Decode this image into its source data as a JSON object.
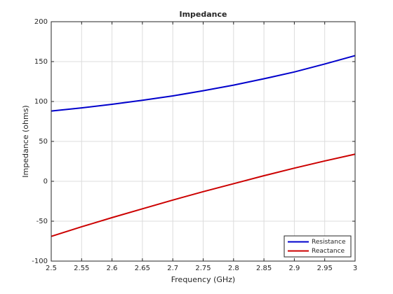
{
  "chart_data": {
    "type": "line",
    "title": "Impedance",
    "x_label": "Frequency (GHz)",
    "y_label": "Impedance (ohms)",
    "x": [
      2.5,
      2.55,
      2.6,
      2.65,
      2.7,
      2.75,
      2.8,
      2.85,
      2.9,
      2.95,
      3.0
    ],
    "series": [
      {
        "name": "Resistance",
        "color": "#0000cc",
        "values": [
          88,
          92,
          96.5,
          101.5,
          107,
          113.5,
          120.5,
          128.5,
          137,
          147,
          157.5
        ]
      },
      {
        "name": "Reactance",
        "color": "#cc0000",
        "values": [
          -69,
          -57,
          -45.5,
          -34.5,
          -23.5,
          -13,
          -3,
          7,
          16.5,
          25.5,
          34
        ]
      }
    ],
    "xlim": [
      2.5,
      3
    ],
    "xticks": [
      2.5,
      2.55,
      2.6,
      2.65,
      2.7,
      2.75,
      2.8,
      2.85,
      2.9,
      2.95,
      3
    ],
    "ylim": [
      -100,
      200
    ],
    "yticks": [
      -100,
      -50,
      0,
      50,
      100,
      150,
      200
    ],
    "grid": true,
    "legend_position": "southeast"
  }
}
